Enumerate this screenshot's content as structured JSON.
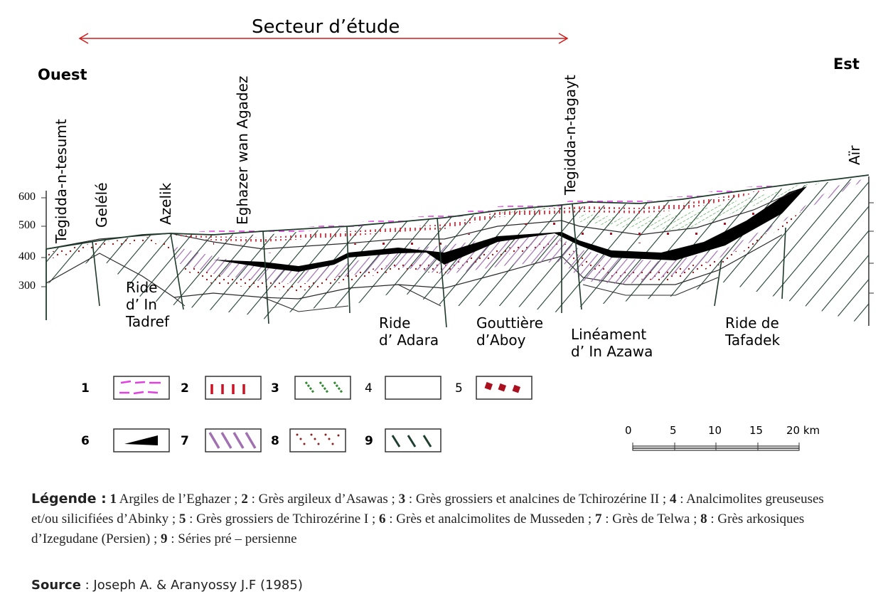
{
  "header": {
    "sector_label": "Secteur d’étude",
    "west_label": "Ouest",
    "east_label": "Est"
  },
  "axis": {
    "ticks": [
      "600",
      "500",
      "400",
      "300"
    ]
  },
  "localities": [
    {
      "name": "Tegidda-n-tesumt"
    },
    {
      "name": "Gelélé"
    },
    {
      "name": "Azelik"
    },
    {
      "name": "Eghazer wan Agadez"
    },
    {
      "name": "Tegidda-n-tagayt"
    },
    {
      "name": "Aïr"
    }
  ],
  "structures": {
    "ride_in_tadref": [
      "Ride",
      "d’ In",
      "Tadref"
    ],
    "ride_adara": [
      "Ride",
      "d’ Adara"
    ],
    "gouttiere_aboy": [
      "Gouttière",
      "d’Aboy"
    ],
    "lineament_in_azawa": [
      "Linéament",
      "d’ In Azawa"
    ],
    "ride_tafadek": [
      "Ride de",
      "Tafadek"
    ]
  },
  "legend_boxes": [
    {
      "num": "1",
      "pattern": "pink-dashes",
      "color": "#e040e0"
    },
    {
      "num": "2",
      "pattern": "red-ticks",
      "color": "#cc1122"
    },
    {
      "num": "3",
      "pattern": "green-dots",
      "color": "#2e8b2e"
    },
    {
      "num": "4",
      "pattern": "blank",
      "color": "#ffffff"
    },
    {
      "num": "5",
      "pattern": "red-diamonds",
      "color": "#aa1020"
    },
    {
      "num": "6",
      "pattern": "black-wedge",
      "color": "#000000"
    },
    {
      "num": "7",
      "pattern": "purple-hatch",
      "color": "#a070b0"
    },
    {
      "num": "8",
      "pattern": "brown-dots",
      "color": "#8b2020"
    },
    {
      "num": "9",
      "pattern": "dark-green-hatch",
      "color": "#1f3f2f"
    }
  ],
  "scale": {
    "ticks": [
      "0",
      "5",
      "10",
      "15",
      "20 km"
    ]
  },
  "legend": {
    "title": "Légende :",
    "items": [
      {
        "num": "1",
        "text": " Argiles de l’Eghazer ; "
      },
      {
        "num": "2",
        "text": " : Grès argileux d’Asawas ; "
      },
      {
        "num": "3",
        "text": " : Grès grossiers et analcines de Tchirozérine II ; "
      },
      {
        "num": "4",
        "text": " : Analcimolites greuseuses et/ou silicifiées d’Abinky ; "
      },
      {
        "num": "5",
        "text": " : Grès grossiers de Tchirozérine I ; "
      },
      {
        "num": "6",
        "text": " : Grès et analcimolites de Musseden ; "
      },
      {
        "num": "7",
        "text": " : Grès de Telwa ; "
      },
      {
        "num": "8",
        "text": " : Grès arkosiques d’Izegudane (Persien) ; "
      },
      {
        "num": "9",
        "text": " : Séries pré – persienne"
      }
    ]
  },
  "source": {
    "label": "Source",
    "text": " : Joseph A. & Aranyossy J.F (1985)"
  }
}
